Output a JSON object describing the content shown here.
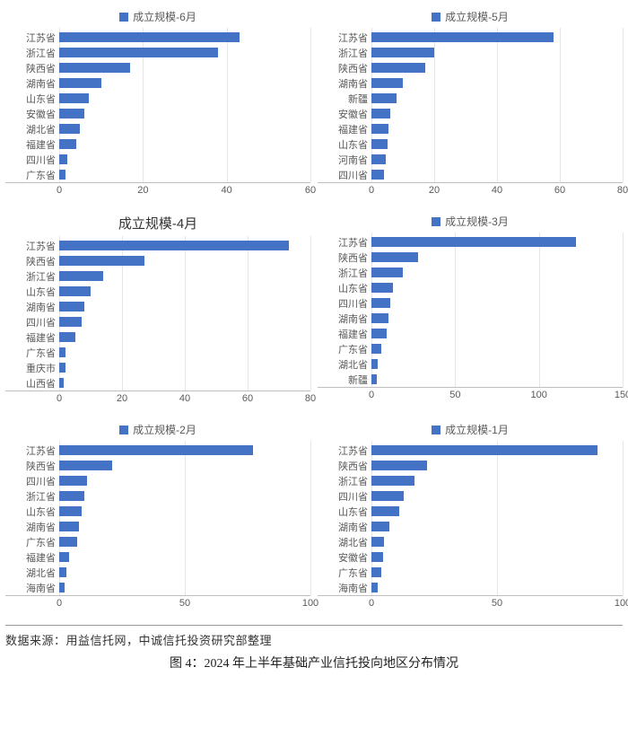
{
  "footer": {
    "source": "数据来源：用益信托网，中诚信托投资研究部整理",
    "caption": "图 4：2024 年上半年基础产业信托投向地区分布情况"
  },
  "shared": {
    "bar_color": "#4472c4",
    "grid_color": "#e6e6e6",
    "axis_color": "#bfbfbf",
    "label_color": "#595959",
    "label_fontsize": 11
  },
  "charts": [
    {
      "legend_style": "small",
      "legend": "成立规模-6月",
      "xmax": 60,
      "xtick_step": 20,
      "categories": [
        "江苏省",
        "浙江省",
        "陕西省",
        "湖南省",
        "山东省",
        "安徽省",
        "湖北省",
        "福建省",
        "四川省",
        "广东省"
      ],
      "values": [
        43,
        38,
        17,
        10,
        7,
        6,
        5,
        4,
        2,
        1.5
      ]
    },
    {
      "legend_style": "small",
      "legend": "成立规模-5月",
      "xmax": 80,
      "xtick_step": 20,
      "categories": [
        "江苏省",
        "浙江省",
        "陕西省",
        "湖南省",
        "新疆",
        "安徽省",
        "福建省",
        "山东省",
        "河南省",
        "四川省"
      ],
      "values": [
        58,
        20,
        17,
        10,
        8,
        6,
        5.5,
        5,
        4.5,
        4
      ]
    },
    {
      "legend_style": "big",
      "legend": "成立规模-4月",
      "xmax": 80,
      "xtick_step": 20,
      "categories": [
        "江苏省",
        "陕西省",
        "浙江省",
        "山东省",
        "湖南省",
        "四川省",
        "福建省",
        "广东省",
        "重庆市",
        "山西省"
      ],
      "values": [
        73,
        27,
        14,
        10,
        8,
        7,
        5,
        2,
        2,
        1.5
      ]
    },
    {
      "legend_style": "small",
      "legend": "成立规模-3月",
      "xmax": 150,
      "xtick_step": 50,
      "categories": [
        "江苏省",
        "陕西省",
        "浙江省",
        "山东省",
        "四川省",
        "湖南省",
        "福建省",
        "广东省",
        "湖北省",
        "新疆"
      ],
      "values": [
        122,
        28,
        19,
        13,
        11,
        10,
        9,
        6,
        3.5,
        3
      ]
    },
    {
      "legend_style": "small",
      "legend": "成立规模-2月",
      "xmax": 100,
      "xtick_step": 50,
      "categories": [
        "江苏省",
        "陕西省",
        "四川省",
        "浙江省",
        "山东省",
        "湖南省",
        "广东省",
        "福建省",
        "湖北省",
        "海南省"
      ],
      "values": [
        77,
        21,
        11,
        10,
        9,
        8,
        7,
        4,
        3,
        2
      ]
    },
    {
      "legend_style": "small",
      "legend": "成立规模-1月",
      "xmax": 100,
      "xtick_step": 50,
      "categories": [
        "江苏省",
        "陕西省",
        "浙江省",
        "四川省",
        "山东省",
        "湖南省",
        "湖北省",
        "安徽省",
        "广东省",
        "海南省"
      ],
      "values": [
        90,
        22,
        17,
        13,
        11,
        7,
        5,
        4.5,
        4,
        2.5
      ]
    }
  ]
}
